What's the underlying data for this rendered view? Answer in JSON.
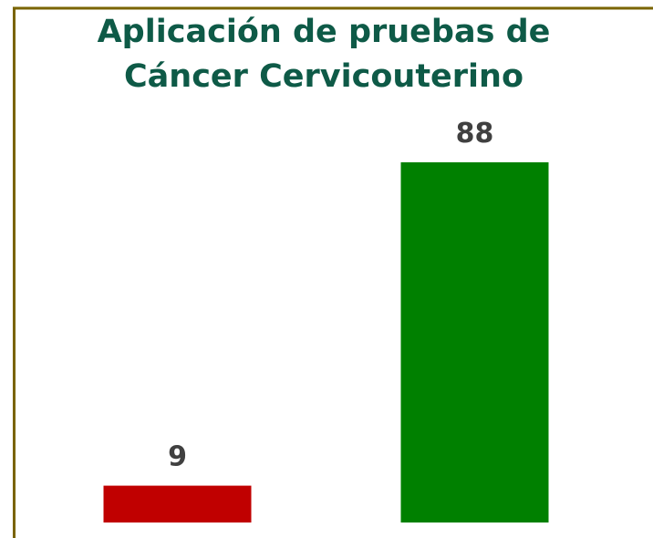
{
  "chart_data": {
    "type": "bar",
    "title": [
      "Aplicación de pruebas de",
      "Cáncer Cervicouterino"
    ],
    "categories": [
      null,
      null
    ],
    "values": [
      9,
      88
    ],
    "colors": [
      "#c00000",
      "#008000"
    ]
  }
}
